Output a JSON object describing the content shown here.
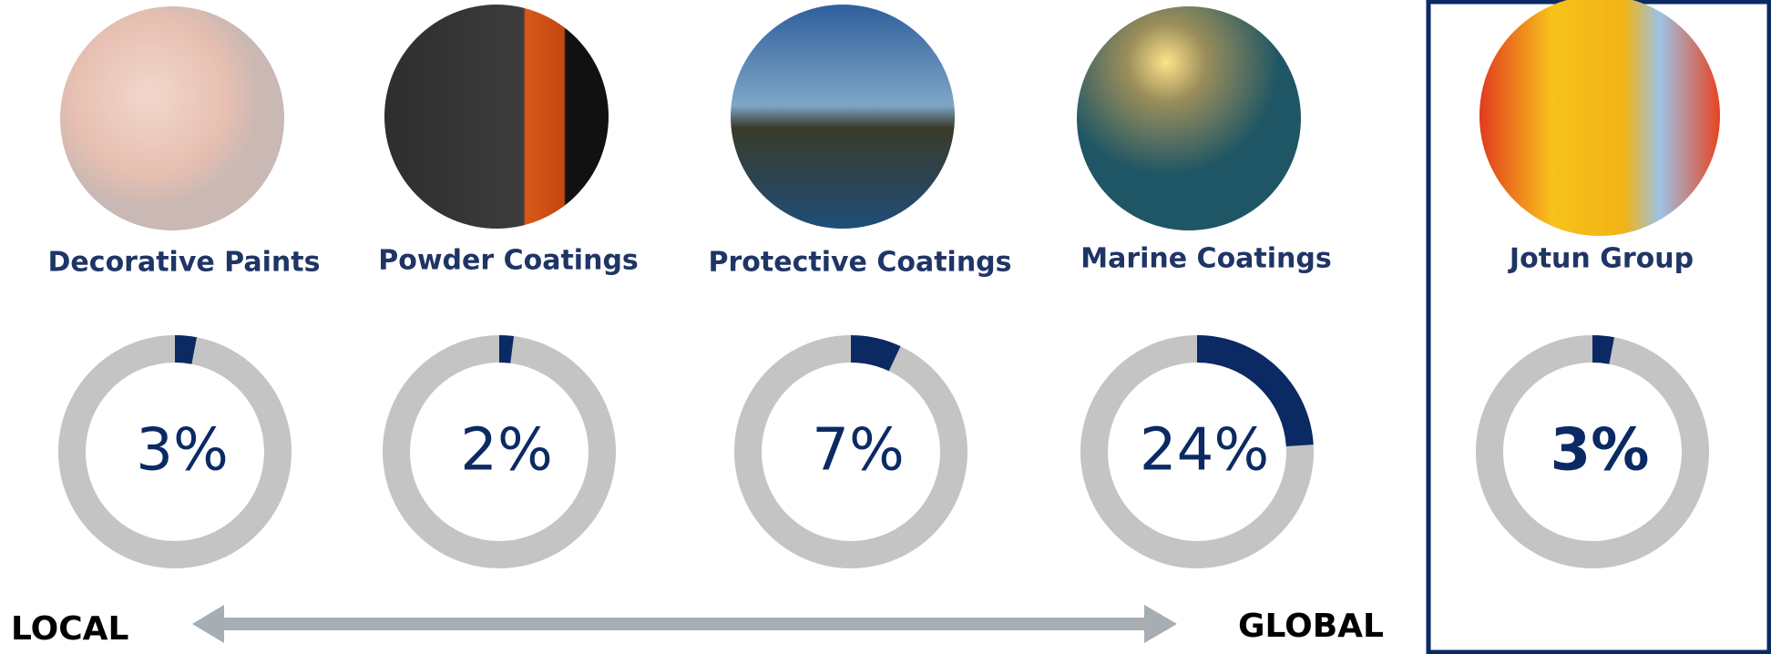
{
  "chart_data": [
    {
      "type": "donut",
      "title": "Decorative Paints",
      "values": [
        3
      ],
      "value_labels": [
        "3%"
      ],
      "color": "#0b2a63"
    },
    {
      "type": "donut",
      "title": "Powder Coatings",
      "values": [
        2
      ],
      "value_labels": [
        "2%"
      ],
      "color": "#0b2a63"
    },
    {
      "type": "donut",
      "title": "Protective Coatings",
      "values": [
        7
      ],
      "value_labels": [
        "7%"
      ],
      "color": "#0b2a63"
    },
    {
      "type": "donut",
      "title": "Marine Coatings",
      "values": [
        24
      ],
      "value_labels": [
        "24%"
      ],
      "color": "#0b2a63"
    },
    {
      "type": "donut",
      "title": "Jotun Group",
      "values": [
        3
      ],
      "value_labels": [
        "3%"
      ],
      "color": "#0b2a63"
    }
  ],
  "scale": {
    "left": "LOCAL",
    "right": "GLOBAL"
  }
}
